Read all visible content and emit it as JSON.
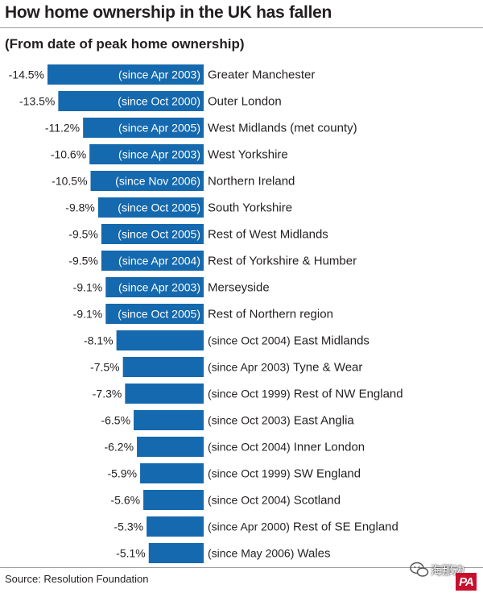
{
  "header": {
    "title": "How home ownership in the UK has fallen",
    "subtitle": "(From date of peak home ownership)"
  },
  "footer": {
    "source": "Source: Resolution Foundation",
    "watermark_text": "海那边",
    "logo_text": "PA"
  },
  "colors": {
    "bar": "#1569ae",
    "bar_text": "#ffffff",
    "label_text": "#231f20",
    "rule": "#9c9c9c",
    "logo_bg": "#c8102e"
  },
  "chart_data": {
    "type": "bar",
    "orientation": "horizontal",
    "value_unit": "%",
    "xlim": [
      -14.5,
      0
    ],
    "items": [
      {
        "region": "Greater Manchester",
        "since": "(since Apr 2003)",
        "value": -14.5,
        "value_label": "-14.5%"
      },
      {
        "region": "Outer London",
        "since": "(since Oct 2000)",
        "value": -13.5,
        "value_label": "-13.5%"
      },
      {
        "region": "West Midlands (met county)",
        "since": "(since Apr 2005)",
        "value": -11.2,
        "value_label": "-11.2%"
      },
      {
        "region": "West Yorkshire",
        "since": "(since Apr 2003)",
        "value": -10.6,
        "value_label": "-10.6%"
      },
      {
        "region": "Northern Ireland",
        "since": "(since Nov 2006)",
        "value": -10.5,
        "value_label": "-10.5%"
      },
      {
        "region": "South Yorkshire",
        "since": "(since Oct 2005)",
        "value": -9.8,
        "value_label": "-9.8%"
      },
      {
        "region": "Rest of West Midlands",
        "since": "(since Oct 2005)",
        "value": -9.5,
        "value_label": "-9.5%"
      },
      {
        "region": "Rest of Yorkshire & Humber",
        "since": "(since Apr 2004)",
        "value": -9.5,
        "value_label": "-9.5%"
      },
      {
        "region": "Merseyside",
        "since": "(since Apr 2003)",
        "value": -9.1,
        "value_label": "-9.1%"
      },
      {
        "region": "Rest of Northern region",
        "since": "(since Oct 2005)",
        "value": -9.1,
        "value_label": "-9.1%"
      },
      {
        "region": "East Midlands",
        "since": "(since Oct 2004)",
        "value": -8.1,
        "value_label": "-8.1%"
      },
      {
        "region": "Tyne & Wear",
        "since": "(since Apr 2003)",
        "value": -7.5,
        "value_label": "-7.5%"
      },
      {
        "region": "Rest of NW England",
        "since": "(since Oct 1999)",
        "value": -7.3,
        "value_label": "-7.3%"
      },
      {
        "region": "East Anglia",
        "since": "(since Oct 2003)",
        "value": -6.5,
        "value_label": "-6.5%"
      },
      {
        "region": "Inner London",
        "since": "(since Oct 2004)",
        "value": -6.2,
        "value_label": "-6.2%"
      },
      {
        "region": "SW England",
        "since": "(since Oct 1999)",
        "value": -5.9,
        "value_label": "-5.9%"
      },
      {
        "region": "Scotland",
        "since": "(since Oct 2004)",
        "value": -5.6,
        "value_label": "-5.6%"
      },
      {
        "region": "Rest of SE England",
        "since": "(since Apr 2000)",
        "value": -5.3,
        "value_label": "-5.3%"
      },
      {
        "region": "Wales",
        "since": "(since May 2006)",
        "value": -5.1,
        "value_label": "-5.1%"
      }
    ]
  }
}
